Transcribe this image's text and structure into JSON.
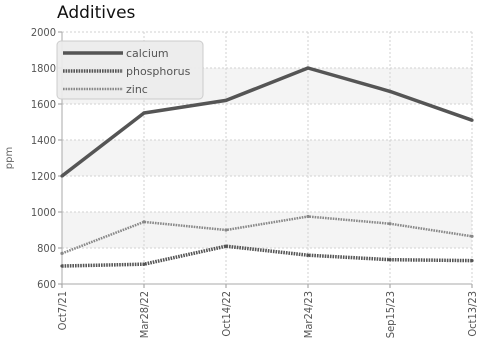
{
  "chart_data": {
    "type": "line",
    "title": "Additives",
    "xlabel": "",
    "ylabel": "ppm",
    "categories": [
      "Oct7/21",
      "Mar28/22",
      "Oct14/22",
      "Mar24/23",
      "Sep15/23",
      "Oct13/23"
    ],
    "ylim": [
      600,
      2000
    ],
    "yticks": [
      600,
      800,
      1000,
      1200,
      1400,
      1600,
      1800,
      2000
    ],
    "grid": true,
    "legend_position": "top-left",
    "series": [
      {
        "name": "calcium",
        "values": [
          1200,
          1550,
          1620,
          1800,
          1670,
          1510
        ],
        "color": "#555555",
        "style": "solid"
      },
      {
        "name": "phosphorus",
        "values": [
          700,
          710,
          810,
          760,
          735,
          730
        ],
        "color": "#555555",
        "style": "dotted"
      },
      {
        "name": "zinc",
        "values": [
          770,
          945,
          900,
          975,
          935,
          865
        ],
        "color": "#888888",
        "style": "dotted-light"
      }
    ]
  }
}
